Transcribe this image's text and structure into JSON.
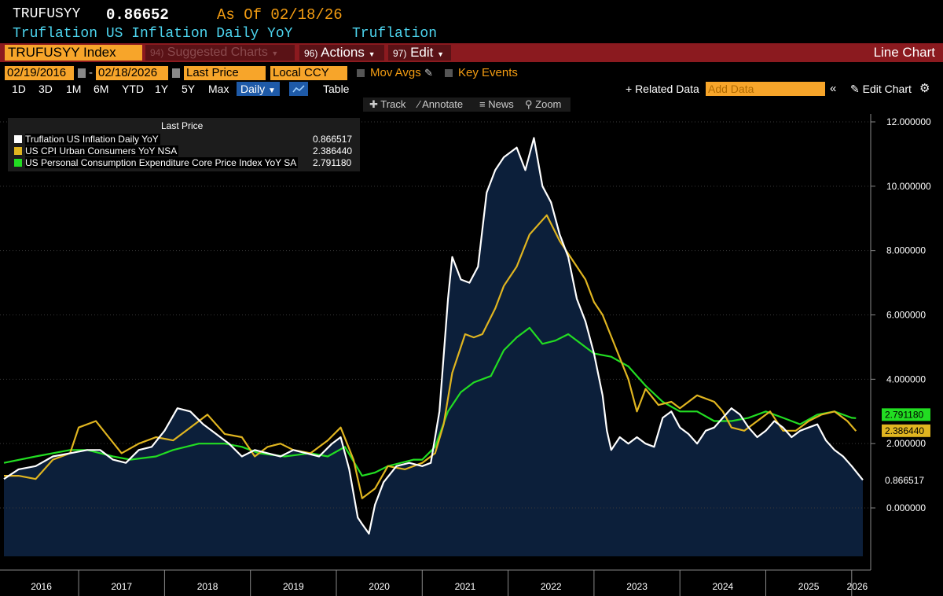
{
  "header": {
    "ticker": "TRUFUSYY",
    "value": "0.86652",
    "as_of": "As Of 02/18/26",
    "description": "Truflation US Inflation Daily YoY",
    "source": "Truflation"
  },
  "toolbar": {
    "security": "TRUFUSYY Index",
    "suggested_num": "94)",
    "suggested_label": "Suggested Charts",
    "actions_num": "96)",
    "actions_label": "Actions",
    "edit_num": "97)",
    "edit_label": "Edit",
    "view": "Line Chart"
  },
  "settings": {
    "start_date": "02/19/2016",
    "end_date": "02/18/2026",
    "field": "Last Price",
    "currency": "Local CCY",
    "mov_avgs": "Mov Avgs",
    "key_events": "Key Events"
  },
  "ranges": {
    "items": [
      "1D",
      "3D",
      "1M",
      "6M",
      "YTD",
      "1Y",
      "5Y",
      "Max"
    ],
    "frequency": "Daily",
    "table": "Table",
    "related": "+ Related Data",
    "add_data_placeholder": "Add Data",
    "edit_chart": "Edit Chart"
  },
  "chart_tools": {
    "track": "Track",
    "annotate": "Annotate",
    "news": "News",
    "zoom": "Zoom"
  },
  "legend": {
    "header": "Last Price"
  },
  "colors": {
    "background": "#000000",
    "area_fill": "#0c1f3a",
    "truflation": "#ffffff",
    "cpi": "#e0b520",
    "pce": "#22dd22",
    "toolbar": "#8b1a1f",
    "accent": "#f7a52a"
  },
  "chart_data": {
    "type": "line",
    "x_unit": "year",
    "xlim": [
      2016.13,
      2026.13
    ],
    "ylim": [
      -1.5,
      12.5
    ],
    "yticks": [
      0,
      2,
      4,
      6,
      8,
      10,
      12
    ],
    "ytick_labels": [
      "0.000000",
      "2.000000",
      "4.000000",
      "6.000000",
      "8.000000",
      "10.000000",
      "12.000000"
    ],
    "xtick_labels": [
      "2016",
      "2017",
      "2018",
      "2019",
      "2020",
      "2021",
      "2022",
      "2023",
      "2024",
      "2025",
      "2026"
    ],
    "grid": true,
    "legend_position": "top-left",
    "series": [
      {
        "name": "Truflation US Inflation Daily YoY",
        "last": "0.866517",
        "color": "#ffffff",
        "fill": true,
        "x": [
          2016.13,
          2016.3,
          2016.5,
          2016.7,
          2016.9,
          2017.1,
          2017.25,
          2017.4,
          2017.55,
          2017.7,
          2017.85,
          2018.0,
          2018.15,
          2018.3,
          2018.45,
          2018.6,
          2018.75,
          2018.9,
          2019.05,
          2019.2,
          2019.35,
          2019.5,
          2019.65,
          2019.8,
          2019.95,
          2020.05,
          2020.15,
          2020.25,
          2020.3,
          2020.38,
          2020.45,
          2020.55,
          2020.7,
          2020.85,
          2021.0,
          2021.1,
          2021.2,
          2021.3,
          2021.35,
          2021.45,
          2021.55,
          2021.65,
          2021.75,
          2021.85,
          2021.95,
          2022.0,
          2022.1,
          2022.2,
          2022.3,
          2022.4,
          2022.5,
          2022.6,
          2022.7,
          2022.8,
          2022.9,
          2023.0,
          2023.1,
          2023.15,
          2023.2,
          2023.3,
          2023.4,
          2023.5,
          2023.6,
          2023.7,
          2023.8,
          2023.9,
          2024.0,
          2024.1,
          2024.2,
          2024.3,
          2024.4,
          2024.5,
          2024.6,
          2024.7,
          2024.8,
          2024.9,
          2025.0,
          2025.1,
          2025.2,
          2025.3,
          2025.4,
          2025.5,
          2025.6,
          2025.7,
          2025.8,
          2025.9,
          2026.0,
          2026.13
        ],
        "values": [
          0.9,
          1.2,
          1.3,
          1.6,
          1.7,
          1.8,
          1.8,
          1.5,
          1.4,
          1.8,
          1.9,
          2.4,
          3.1,
          3.0,
          2.6,
          2.3,
          2.0,
          1.6,
          1.8,
          1.7,
          1.6,
          1.8,
          1.7,
          1.6,
          2.0,
          2.2,
          1.2,
          -0.3,
          -0.5,
          -0.8,
          0.1,
          0.8,
          1.3,
          1.4,
          1.3,
          1.4,
          3.0,
          6.5,
          7.8,
          7.1,
          7.0,
          7.5,
          9.8,
          10.5,
          10.9,
          11.0,
          11.2,
          10.5,
          11.5,
          10.0,
          9.5,
          8.5,
          7.8,
          6.5,
          5.8,
          4.8,
          3.5,
          2.4,
          1.8,
          2.2,
          2.0,
          2.2,
          2.0,
          1.9,
          2.8,
          3.0,
          2.5,
          2.3,
          2.0,
          2.4,
          2.5,
          2.8,
          3.1,
          2.9,
          2.5,
          2.2,
          2.4,
          2.7,
          2.5,
          2.2,
          2.4,
          2.5,
          2.6,
          2.1,
          1.8,
          1.6,
          1.3,
          0.87
        ]
      },
      {
        "name": "US CPI Urban Consumers YoY NSA",
        "last": "2.386440",
        "color": "#e0b520",
        "fill": false,
        "x": [
          2016.13,
          2016.3,
          2016.5,
          2016.7,
          2016.9,
          2017.0,
          2017.2,
          2017.35,
          2017.5,
          2017.7,
          2017.9,
          2018.1,
          2018.3,
          2018.5,
          2018.7,
          2018.9,
          2019.05,
          2019.2,
          2019.35,
          2019.5,
          2019.7,
          2019.9,
          2020.05,
          2020.2,
          2020.3,
          2020.45,
          2020.6,
          2020.8,
          2021.0,
          2021.15,
          2021.25,
          2021.35,
          2021.5,
          2021.6,
          2021.7,
          2021.85,
          2021.95,
          2022.1,
          2022.25,
          2022.45,
          2022.6,
          2022.75,
          2022.9,
          2023.0,
          2023.1,
          2023.25,
          2023.4,
          2023.5,
          2023.6,
          2023.75,
          2023.9,
          2024.0,
          2024.2,
          2024.4,
          2024.5,
          2024.6,
          2024.75,
          2024.9,
          2025.05,
          2025.2,
          2025.35,
          2025.5,
          2025.65,
          2025.8,
          2025.95,
          2026.05
        ],
        "values": [
          1.0,
          1.0,
          0.9,
          1.5,
          1.7,
          2.5,
          2.7,
          2.2,
          1.7,
          2.0,
          2.2,
          2.1,
          2.5,
          2.9,
          2.3,
          2.2,
          1.6,
          1.9,
          2.0,
          1.8,
          1.7,
          2.1,
          2.5,
          1.5,
          0.3,
          0.6,
          1.3,
          1.2,
          1.4,
          1.7,
          2.6,
          4.2,
          5.4,
          5.3,
          5.4,
          6.2,
          6.9,
          7.5,
          8.5,
          9.1,
          8.3,
          7.7,
          7.1,
          6.4,
          6.0,
          5.0,
          4.0,
          3.0,
          3.7,
          3.2,
          3.3,
          3.1,
          3.5,
          3.3,
          3.0,
          2.5,
          2.4,
          2.7,
          3.0,
          2.4,
          2.4,
          2.7,
          2.9,
          3.0,
          2.7,
          2.39
        ]
      },
      {
        "name": "US Personal Consumption Expenditure Core Price Index YoY SA",
        "last": "2.791180",
        "color": "#22dd22",
        "fill": false,
        "x": [
          2016.13,
          2016.5,
          2016.9,
          2017.1,
          2017.4,
          2017.6,
          2017.9,
          2018.1,
          2018.4,
          2018.7,
          2018.9,
          2019.1,
          2019.4,
          2019.7,
          2019.9,
          2020.1,
          2020.3,
          2020.45,
          2020.6,
          2020.9,
          2021.0,
          2021.15,
          2021.3,
          2021.45,
          2021.6,
          2021.8,
          2021.95,
          2022.1,
          2022.25,
          2022.4,
          2022.55,
          2022.7,
          2022.85,
          2023.0,
          2023.2,
          2023.4,
          2023.6,
          2023.8,
          2024.0,
          2024.2,
          2024.4,
          2024.6,
          2024.8,
          2025.0,
          2025.2,
          2025.4,
          2025.6,
          2025.8,
          2026.0,
          2026.05
        ],
        "values": [
          1.4,
          1.6,
          1.8,
          1.8,
          1.6,
          1.5,
          1.6,
          1.8,
          2.0,
          2.0,
          1.9,
          1.7,
          1.6,
          1.7,
          1.6,
          1.9,
          1.0,
          1.1,
          1.3,
          1.5,
          1.5,
          1.9,
          3.0,
          3.6,
          3.9,
          4.1,
          4.9,
          5.3,
          5.6,
          5.1,
          5.2,
          5.4,
          5.1,
          4.8,
          4.7,
          4.4,
          3.8,
          3.3,
          3.0,
          3.0,
          2.7,
          2.7,
          2.8,
          3.0,
          2.8,
          2.6,
          2.9,
          3.0,
          2.8,
          2.79
        ]
      }
    ]
  }
}
